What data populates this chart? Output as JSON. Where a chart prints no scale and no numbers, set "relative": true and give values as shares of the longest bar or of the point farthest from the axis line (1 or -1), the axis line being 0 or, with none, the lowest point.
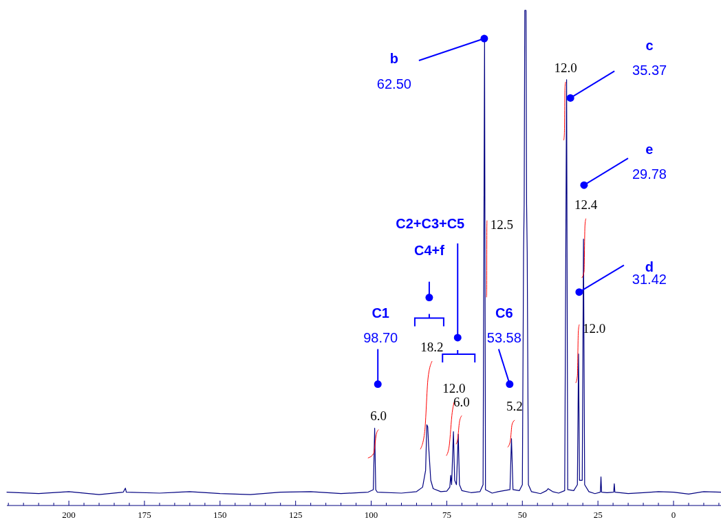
{
  "chart_data": {
    "type": "line",
    "relative": true,
    "xlim": [
      220.5,
      -15.7
    ],
    "xticks": [
      {
        "value": 220,
        "label": null
      },
      {
        "value": 215,
        "label": null
      },
      {
        "value": 210,
        "label": null
      },
      {
        "value": 205,
        "label": null
      },
      200,
      {
        "value": 195,
        "label": null
      },
      {
        "value": 190,
        "label": null
      },
      {
        "value": 185,
        "label": null
      },
      {
        "value": 180,
        "label": null
      },
      175,
      {
        "value": 170,
        "label": null
      },
      {
        "value": 165,
        "label": null
      },
      {
        "value": 160,
        "label": null
      },
      {
        "value": 155,
        "label": null
      },
      150,
      {
        "value": 145,
        "label": null
      },
      {
        "value": 140,
        "label": null
      },
      {
        "value": 135,
        "label": null
      },
      {
        "value": 130,
        "label": null
      },
      125,
      {
        "value": 120,
        "label": null
      },
      {
        "value": 115,
        "label": null
      },
      {
        "value": 110,
        "label": null
      },
      {
        "value": 105,
        "label": null
      },
      100,
      {
        "value": 95,
        "label": null
      },
      {
        "value": 90,
        "label": null
      },
      {
        "value": 85,
        "label": null
      },
      {
        "value": 80,
        "label": null
      },
      75,
      {
        "value": 70,
        "label": null
      },
      {
        "value": 65,
        "label": null
      },
      {
        "value": 60,
        "label": null
      },
      {
        "value": 55,
        "label": null
      },
      50,
      {
        "value": 45,
        "label": null
      },
      {
        "value": 40,
        "label": null
      },
      {
        "value": 35,
        "label": null
      },
      {
        "value": 30,
        "label": null
      },
      25,
      {
        "value": 20,
        "label": null
      },
      {
        "value": 15,
        "label": null
      },
      {
        "value": 10,
        "label": null
      },
      {
        "value": 5,
        "label": null
      },
      0,
      {
        "value": -5,
        "label": null
      },
      {
        "value": -10,
        "label": null
      },
      {
        "value": -15,
        "label": null
      }
    ],
    "series": [
      {
        "color": "#000080",
        "x": [
          220.5,
          210,
          200,
          190,
          182,
          181.3,
          181,
          170,
          160,
          150,
          140,
          130,
          120,
          110,
          101,
          99.3,
          98.85,
          98.5,
          98,
          90,
          85,
          83,
          82,
          81.6,
          81.3,
          81,
          80.3,
          79.5,
          77,
          75,
          74,
          73.7,
          73.4,
          72.8,
          72.4,
          71.8,
          71.2,
          70.8,
          70,
          67,
          64,
          63,
          62.5,
          62.2,
          60,
          58,
          54.1,
          53.6,
          53.1,
          51,
          50,
          49.6,
          49.4,
          49.2,
          49,
          48.8,
          48.6,
          48.4,
          48,
          47,
          44,
          42,
          41.5,
          40,
          38,
          36,
          35.37,
          35,
          33,
          31.8,
          31.42,
          31.1,
          30.2,
          29.78,
          29.4,
          28,
          26,
          24.2,
          24,
          23.8,
          22,
          19.8,
          19.6,
          19.4,
          15,
          10,
          5,
          0,
          -5,
          -10,
          -15.7
        ],
        "values": [
          0.027,
          0.024,
          0.028,
          0.022,
          0.027,
          0.035,
          0.027,
          0.025,
          0.028,
          0.024,
          0.022,
          0.027,
          0.028,
          0.024,
          0.027,
          0.032,
          0.156,
          0.032,
          0.027,
          0.025,
          0.028,
          0.037,
          0.071,
          0.163,
          0.159,
          0.12,
          0.051,
          0.034,
          0.028,
          0.029,
          0.037,
          0.061,
          0.042,
          0.149,
          0.051,
          0.042,
          0.144,
          0.042,
          0.03,
          0.026,
          0.028,
          0.042,
          0.944,
          0.032,
          0.025,
          0.028,
          0.032,
          0.135,
          0.032,
          0.03,
          0.042,
          0.511,
          0.609,
          1,
          1,
          1,
          0.609,
          0.511,
          0.042,
          0.028,
          0.024,
          0.03,
          0.034,
          0.028,
          0.025,
          0.03,
          0.86,
          0.032,
          0.03,
          0.042,
          0.306,
          0.051,
          0.051,
          0.538,
          0.042,
          0.028,
          0.024,
          0.027,
          0.058,
          0.027,
          0.026,
          0.027,
          0.044,
          0.027,
          0.024,
          0.026,
          0.028,
          0.027,
          0.023,
          0.028,
          0.027
        ]
      },
      {
        "color": "#ff0000",
        "x": [
          101.0,
          99.2,
          98.3,
          97.6
        ],
        "values": [
          0.096,
          0.105,
          0.144,
          0.153
        ]
      },
      {
        "color": "#ff0000",
        "x": [
          83.7,
          82.3,
          81.2,
          79.9
        ],
        "values": [
          0.114,
          0.149,
          0.257,
          0.291
        ]
      },
      {
        "color": "#ff0000",
        "x": [
          75.1,
          74.2,
          73.2,
          72.6
        ],
        "values": [
          0.101,
          0.12,
          0.188,
          0.208
        ]
      },
      {
        "color": "#ff0000",
        "x": [
          71.9,
          71.4,
          70.8,
          70.1
        ],
        "values": [
          0.124,
          0.134,
          0.169,
          0.181
        ]
      },
      {
        "color": "#ff0000",
        "x": [
          61.85,
          61.8,
          61.75,
          61.7
        ],
        "values": [
          0.421,
          0.433,
          0.56,
          0.575
        ]
      },
      {
        "color": "#ff0000",
        "x": [
          54.8,
          54.0,
          53.4,
          52.6
        ],
        "values": [
          0.118,
          0.13,
          0.164,
          0.172
        ]
      },
      {
        "color": "#ff0000",
        "x": [
          36.3,
          36.1,
          35.9,
          35.7
        ],
        "values": [
          0.738,
          0.751,
          0.844,
          0.855
        ]
      },
      {
        "color": "#ff0000",
        "x": [
          32.3,
          31.8,
          31.5,
          31.2
        ],
        "values": [
          0.248,
          0.262,
          0.35,
          0.365
        ]
      },
      {
        "color": "#ff0000",
        "x": [
          30.3,
          29.6,
          29.3,
          29.0
        ],
        "values": [
          0.46,
          0.472,
          0.565,
          0.579
        ]
      }
    ],
    "annotations": [
      {
        "text": "C1\n98.70",
        "x": 97.8,
        "y": 0.245
      },
      {
        "text": "C4+f",
        "x": 80.8,
        "y": 0.42
      },
      {
        "text": "C2+C3+C5",
        "x": 71.4,
        "y": 0.339
      },
      {
        "text": "b\n62.50",
        "x": 62.6,
        "y": 0.943
      },
      {
        "text": "C6\n53.58",
        "x": 54.2,
        "y": 0.245
      },
      {
        "text": "c\n35.37",
        "x": 34.1,
        "y": 0.823
      },
      {
        "text": "e\n29.78",
        "x": 29.6,
        "y": 0.647
      },
      {
        "text": "d\n31.42",
        "x": 31.2,
        "y": 0.431
      },
      {
        "text": "6.0",
        "x": 97.6,
        "y": 0.153
      },
      {
        "text": "18.2",
        "x": 79.9,
        "y": 0.291
      },
      {
        "text": "12.0",
        "x": 72.6,
        "y": 0.208
      },
      {
        "text": "6.0",
        "x": 70.1,
        "y": 0.181
      },
      {
        "text": "12.5",
        "x": 61.7,
        "y": 0.575
      },
      {
        "text": "5.2",
        "x": 52.6,
        "y": 0.172
      },
      {
        "text": "12.0",
        "x": 35.7,
        "y": 0.855
      },
      {
        "text": "12.0",
        "x": 31.2,
        "y": 0.365
      },
      {
        "text": "12.4",
        "x": 29.0,
        "y": 0.579
      }
    ]
  }
}
